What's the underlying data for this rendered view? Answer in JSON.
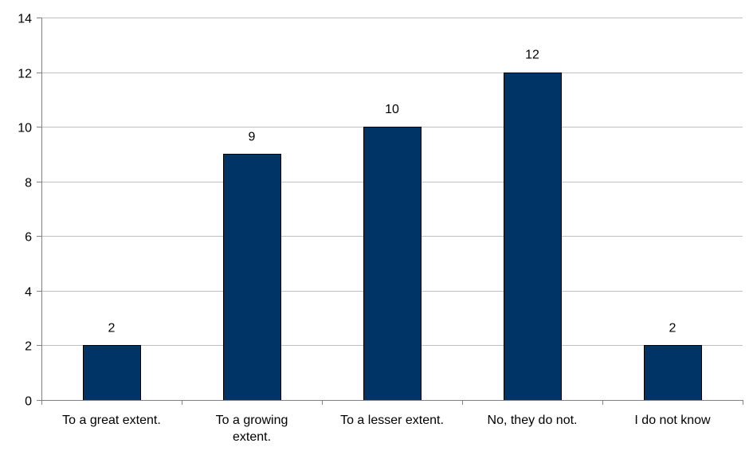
{
  "chart_data": {
    "type": "bar",
    "categories": [
      [
        "To a great extent."
      ],
      [
        "To a growing",
        "extent."
      ],
      [
        "To a lesser extent."
      ],
      [
        "No, they do not."
      ],
      [
        "I do not know"
      ]
    ],
    "values": [
      2,
      9,
      10,
      12,
      2
    ],
    "data_labels": [
      "2",
      "9",
      "10",
      "12",
      "2"
    ],
    "y_ticks": [
      "0",
      "2",
      "4",
      "6",
      "8",
      "10",
      "12",
      "14"
    ],
    "ylim": [
      0,
      14
    ],
    "title": "",
    "xlabel": "",
    "ylabel": "",
    "grid": true,
    "legend": "none",
    "colors": {
      "bar_fill": "#003366",
      "bar_stroke": "#000000",
      "grid": "#c0c0c0",
      "axis": "#808080"
    }
  }
}
